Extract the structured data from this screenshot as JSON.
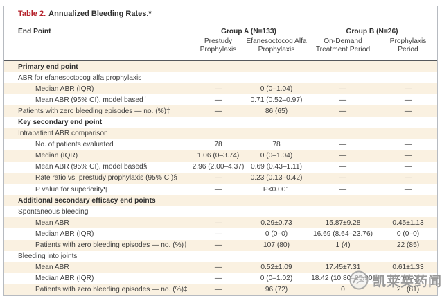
{
  "title": {
    "label": "Table 2.",
    "text": "Annualized Bleeding Rates.*"
  },
  "header": {
    "end_point": "End Point",
    "groups": [
      {
        "label": "Group A (N=133)",
        "cols": [
          "Prestudy Prophylaxis",
          "Efanesoctocog Alfa Prophylaxis"
        ]
      },
      {
        "label": "Group B (N=26)",
        "cols": [
          "On-Demand Treatment Period",
          "Prophylaxis Period"
        ]
      }
    ]
  },
  "rows": [
    {
      "label": "Primary end point",
      "type": "section",
      "indent": 0,
      "values": [
        "",
        "",
        "",
        ""
      ]
    },
    {
      "label": "ABR for efanesoctocog alfa prophylaxis",
      "type": "sub",
      "indent": 0,
      "values": [
        "",
        "",
        "",
        ""
      ]
    },
    {
      "label": "Median ABR (IQR)",
      "type": "data",
      "indent": 1,
      "values": [
        "—",
        "0 (0–1.04)",
        "—",
        "—"
      ]
    },
    {
      "label": "Mean ABR (95% CI), model based†",
      "type": "data",
      "indent": 1,
      "values": [
        "—",
        "0.71 (0.52–0.97)",
        "—",
        "—"
      ]
    },
    {
      "label": "Patients with zero bleeding episodes — no. (%)‡",
      "type": "data",
      "indent": 0,
      "values": [
        "—",
        "86 (65)",
        "—",
        "—"
      ]
    },
    {
      "label": "Key secondary end point",
      "type": "section",
      "indent": 0,
      "values": [
        "",
        "",
        "",
        ""
      ]
    },
    {
      "label": "Intrapatient ABR comparison",
      "type": "sub",
      "indent": 0,
      "values": [
        "",
        "",
        "",
        ""
      ]
    },
    {
      "label": "No. of patients evaluated",
      "type": "data",
      "indent": 1,
      "values": [
        "78",
        "78",
        "—",
        "—"
      ]
    },
    {
      "label": "Median (IQR)",
      "type": "data",
      "indent": 1,
      "values": [
        "1.06 (0–3.74)",
        "0 (0–1.04)",
        "—",
        "—"
      ]
    },
    {
      "label": "Mean ABR (95% CI), model based§",
      "type": "data",
      "indent": 1,
      "values": [
        "2.96 (2.00–4.37)",
        "0.69 (0.43–1.11)",
        "—",
        "—"
      ]
    },
    {
      "label": "Rate ratio vs. prestudy prophylaxis (95% CI)§",
      "type": "data",
      "indent": 1,
      "values": [
        "—",
        "0.23 (0.13–0.42)",
        "—",
        "—"
      ]
    },
    {
      "label": "P value for superiority¶",
      "type": "data",
      "indent": 1,
      "values": [
        "—",
        "P<0.001",
        "—",
        "—"
      ]
    },
    {
      "label": "Additional secondary efficacy end points",
      "type": "section",
      "indent": 0,
      "values": [
        "",
        "",
        "",
        ""
      ]
    },
    {
      "label": "Spontaneous bleeding",
      "type": "sub",
      "indent": 0,
      "values": [
        "",
        "",
        "",
        ""
      ]
    },
    {
      "label": "Mean ABR",
      "type": "data",
      "indent": 1,
      "values": [
        "—",
        "0.29±0.73",
        "15.87±9.28",
        "0.45±1.13"
      ]
    },
    {
      "label": "Median ABR (IQR)",
      "type": "data",
      "indent": 1,
      "values": [
        "—",
        "0 (0–0)",
        "16.69 (8.64–23.76)",
        "0 (0–0)"
      ]
    },
    {
      "label": "Patients with zero bleeding episodes — no. (%)‡",
      "type": "data",
      "indent": 1,
      "values": [
        "—",
        "107 (80)",
        "1 (4)",
        "22 (85)"
      ]
    },
    {
      "label": "Bleeding into joints",
      "type": "sub",
      "indent": 0,
      "values": [
        "",
        "",
        "",
        ""
      ]
    },
    {
      "label": "Mean ABR",
      "type": "data",
      "indent": 1,
      "values": [
        "—",
        "0.52±1.09",
        "17.45±7.31",
        "0.61±1.33"
      ]
    },
    {
      "label": "Median ABR (IQR)",
      "type": "data",
      "indent": 1,
      "values": [
        "—",
        "0 (0–1.02)",
        "18.42 (10.80–25.90)",
        "0 (0–0)"
      ]
    },
    {
      "label": "Patients with zero bleeding episodes — no. (%)‡",
      "type": "data",
      "indent": 1,
      "values": [
        "—",
        "96 (72)",
        "0",
        "21 (81)"
      ]
    }
  ],
  "watermark": {
    "text": "凯莱英药闻",
    "logo": "circular-swirl-logo"
  },
  "colors": {
    "accent_red": "#b5212a",
    "row_shade": "#faf1e1",
    "outer_border": "#b6bac0",
    "header_rule": "#55585c",
    "text": "#3e3e3e",
    "watermark_gray": "#8a8a8a"
  }
}
